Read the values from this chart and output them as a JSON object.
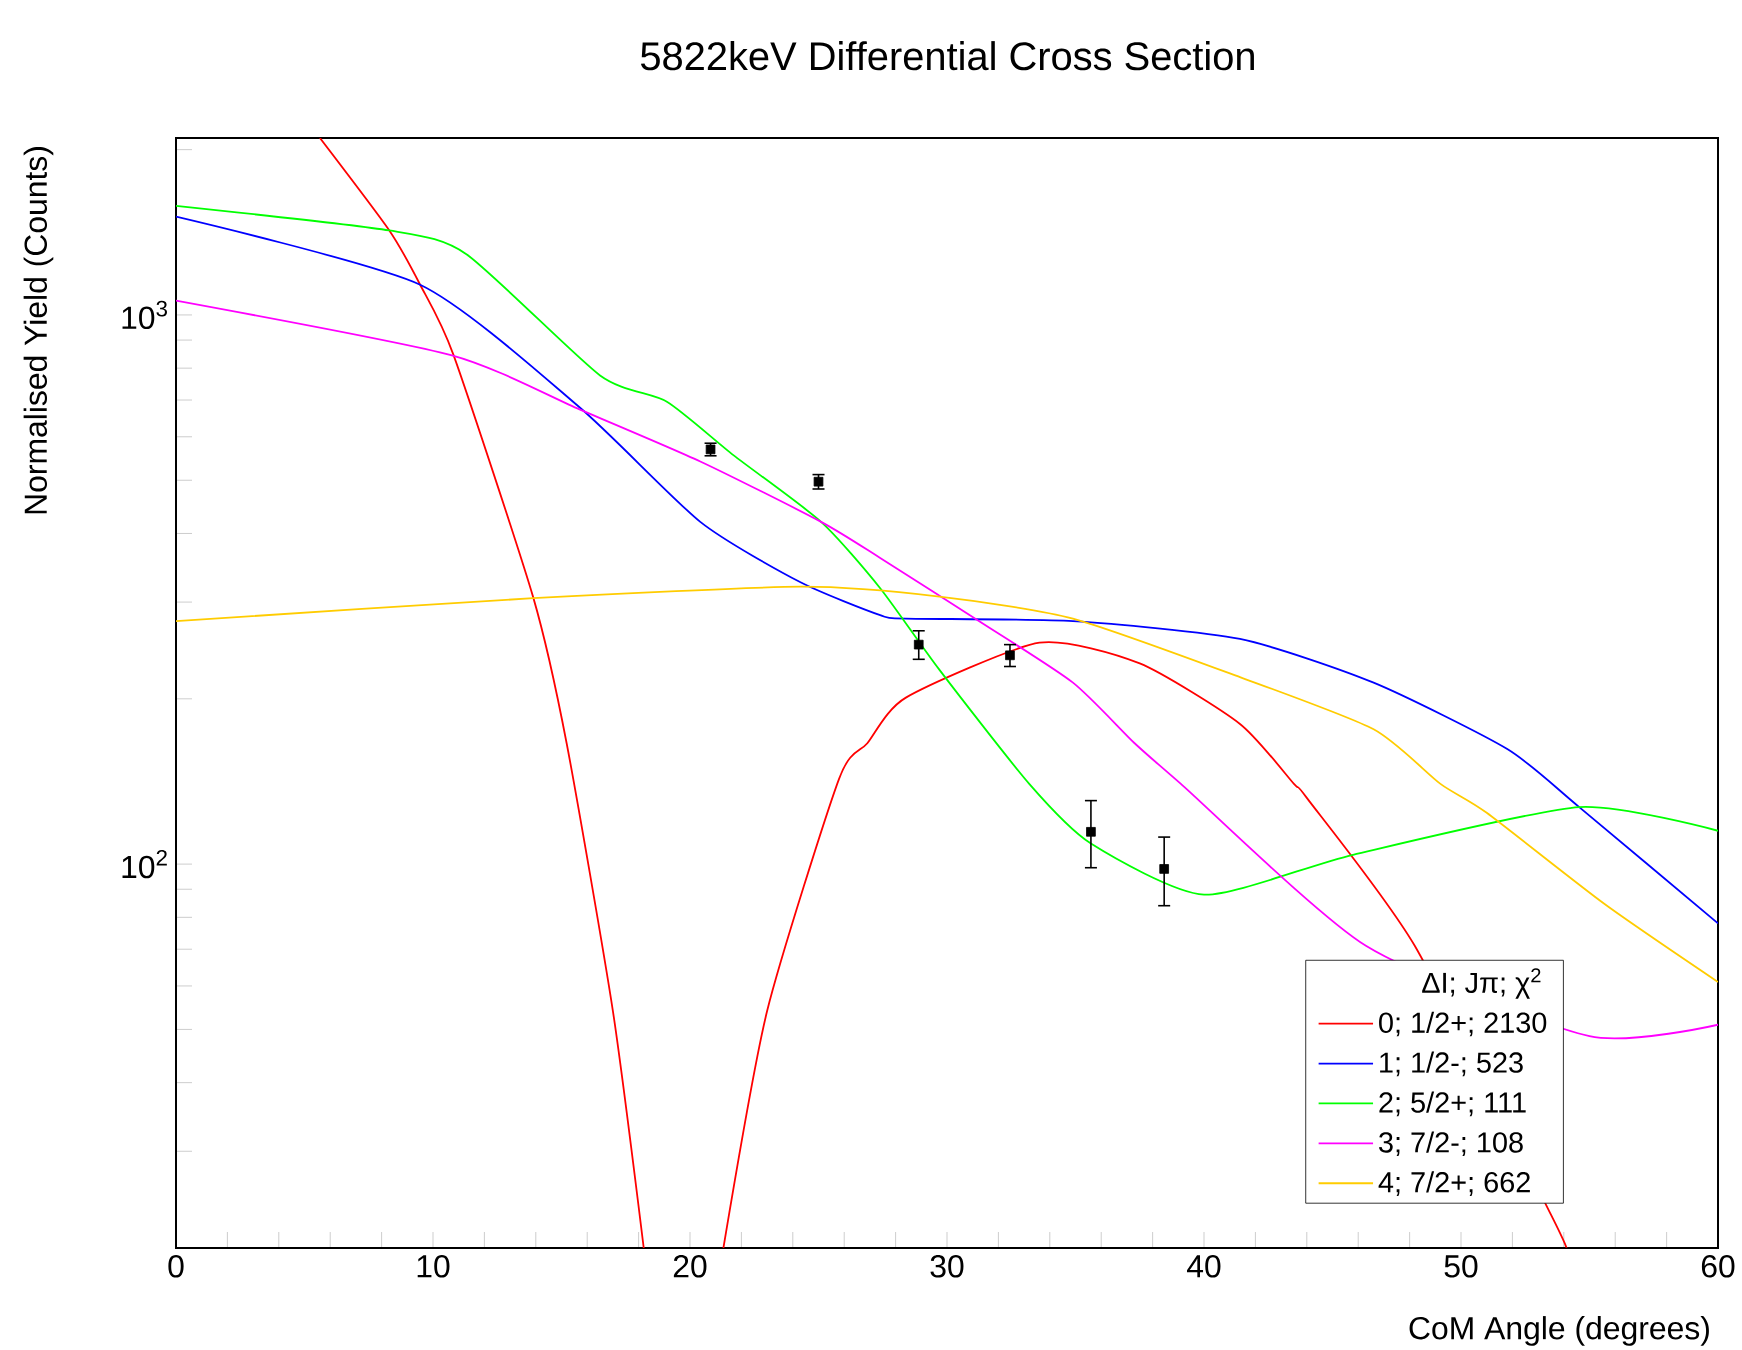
{
  "chart_data": {
    "type": "line",
    "title": "5822keV Differential Cross Section",
    "xlabel": "CoM Angle (degrees)",
    "ylabel": "Normalised Yield (Counts)",
    "log": "y",
    "legend": "bottom right",
    "legend_title": "ΔI;   Jπ;  χ$^{2}$",
    "xlim": [
      0,
      60
    ],
    "ylim": [
      20,
      2100
    ],
    "xticks": [
      0,
      {
        "value": 2,
        "label": null
      },
      {
        "value": 4,
        "label": null
      },
      {
        "value": 6,
        "label": null
      },
      {
        "value": 8,
        "label": null
      },
      10,
      {
        "value": 12,
        "label": null
      },
      {
        "value": 14,
        "label": null
      },
      {
        "value": 16,
        "label": null
      },
      {
        "value": 18,
        "label": null
      },
      20,
      {
        "value": 22,
        "label": null
      },
      {
        "value": 24,
        "label": null
      },
      {
        "value": 26,
        "label": null
      },
      {
        "value": 28,
        "label": null
      },
      30,
      {
        "value": 32,
        "label": null
      },
      {
        "value": 34,
        "label": null
      },
      {
        "value": 36,
        "label": null
      },
      {
        "value": 38,
        "label": null
      },
      40,
      {
        "value": 42,
        "label": null
      },
      {
        "value": 44,
        "label": null
      },
      {
        "value": 46,
        "label": null
      },
      {
        "value": 48,
        "label": null
      },
      50,
      {
        "value": 52,
        "label": null
      },
      {
        "value": 54,
        "label": null
      },
      {
        "value": 56,
        "label": null
      },
      {
        "value": 58,
        "label": null
      },
      60
    ],
    "yticks": [
      {
        "value": 20,
        "label": null
      },
      {
        "value": 30,
        "label": null
      },
      {
        "value": 40,
        "label": null
      },
      {
        "value": 50,
        "label": null
      },
      {
        "value": 60,
        "label": null
      },
      {
        "value": 70,
        "label": null
      },
      {
        "value": 80,
        "label": null
      },
      {
        "value": 90,
        "label": null
      },
      {
        "value": 100,
        "label": "10$^{2}$"
      },
      {
        "value": 200,
        "label": null
      },
      {
        "value": 300,
        "label": null
      },
      {
        "value": 400,
        "label": null
      },
      {
        "value": 500,
        "label": null
      },
      {
        "value": 600,
        "label": null
      },
      {
        "value": 700,
        "label": null
      },
      {
        "value": 800,
        "label": null
      },
      {
        "value": 900,
        "label": null
      },
      {
        "value": 1000,
        "label": "10$^{3}$"
      },
      {
        "value": 2000,
        "label": null
      }
    ],
    "series": [
      {
        "name": "0;   1/2+;  2130",
        "marker": "none",
        "color": "#ff0000",
        "x": [
          5.6,
          8.3,
          9.5,
          10.8,
          13.9,
          15.2,
          17.0,
          18.2,
          19.75,
          21.3,
          23.0,
          25.8,
          26.9,
          28.4,
          33.6,
          37.5,
          41.4,
          43.5,
          44,
          48.2,
          53.5,
          54.1
        ],
        "values": [
          2100,
          1425,
          1135,
          845,
          306,
          166,
          54,
          20,
          null,
          20,
          54,
          143,
          166,
          201,
          253,
          232,
          180,
          140,
          132,
          71,
          23,
          20
        ]
      },
      {
        "name": "1;   1/2-;  523",
        "marker": "none",
        "color": "#0000ff",
        "x": [
          0,
          9.5,
          15.7,
          20.4,
          24.3,
          27.4,
          28.4,
          34.9,
          41.4,
          46.6,
          51.8,
          54.6,
          60
        ],
        "values": [
          1510,
          1135,
          679,
          420,
          326,
          284,
          280,
          277,
          257,
          214,
          162,
          127,
          78
        ]
      },
      {
        "name": "2;   5/2+;  111",
        "marker": "none",
        "color": "#00ff00",
        "x": [
          0,
          8.3,
          11.3,
          16.5,
          19.1,
          21.7,
          25.1,
          27.4,
          29.7,
          33.2,
          35.6,
          40,
          45.8,
          54.6,
          60
        ],
        "values": [
          1580,
          1425,
          1290,
          776,
          695,
          555,
          420,
          318,
          226,
          140,
          109,
          88,
          104,
          127,
          115
        ]
      },
      {
        "name": "3;   7/2-;  108",
        "marker": "none",
        "color": "#ff00ff",
        "x": [
          0,
          10.7,
          15.7,
          20.4,
          25.1,
          27.4,
          31.3,
          34.9,
          37.3,
          39.1,
          46.3,
          55.0,
          60
        ],
        "values": [
          1062,
          845,
          673,
          541,
          420,
          361,
          276,
          214,
          166,
          140,
          71,
          48.6,
          51
        ]
      },
      {
        "name": "4;   7/2+;  662",
        "marker": "none",
        "color": "#ffcc00",
        "x": [
          0,
          13.9,
          24.3,
          29.7,
          34.9,
          41.4,
          46.6,
          49.2,
          51.0,
          55.6,
          60
        ],
        "values": [
          277,
          305,
          320,
          307,
          280,
          219,
          176,
          140,
          124,
          84.5,
          61
        ]
      },
      {
        "type": "scatter",
        "marker": "square",
        "color": "#000000",
        "x": [
          20.8,
          25.0,
          28.9,
          32.45,
          35.6,
          38.45
        ],
        "values": [
          569,
          497,
          251,
          240,
          114.5,
          98
        ],
        "errors": [
          15,
          15,
          15,
          11,
          16,
          14
        ]
      }
    ]
  }
}
